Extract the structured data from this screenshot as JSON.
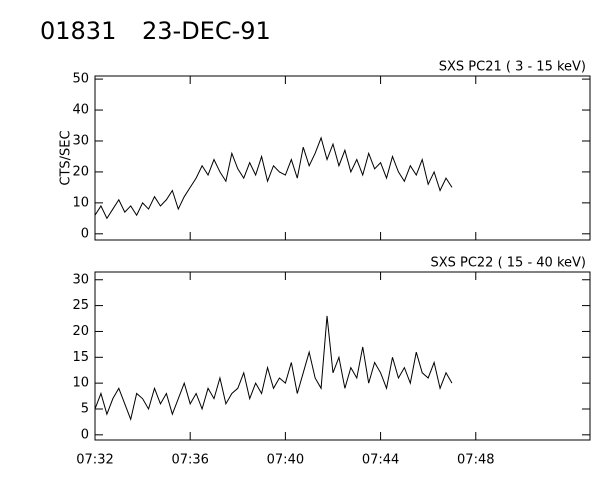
{
  "header": {
    "id": "01831",
    "date": "23-DEC-91"
  },
  "chart_data": [
    {
      "type": "line",
      "subtitle": "SXS PC21  (  3 - 15 keV)",
      "y_label": "CTS/SEC",
      "xlim": [
        452,
        472.8
      ],
      "xticks": [
        452,
        456,
        460,
        464,
        468
      ],
      "ylim": [
        -2,
        51
      ],
      "yticks": [
        0,
        10,
        20,
        30,
        40,
        50
      ],
      "x": [
        452,
        452.25,
        452.5,
        452.75,
        453,
        453.25,
        453.5,
        453.75,
        454,
        454.25,
        454.5,
        454.75,
        455,
        455.25,
        455.5,
        455.75,
        456,
        456.25,
        456.5,
        456.75,
        457,
        457.25,
        457.5,
        457.75,
        458,
        458.25,
        458.5,
        458.75,
        459,
        459.25,
        459.5,
        459.75,
        460,
        460.25,
        460.5,
        460.75,
        461,
        461.25,
        461.5,
        461.75,
        462,
        462.25,
        462.5,
        462.75,
        463,
        463.25,
        463.5,
        463.75,
        464,
        464.25,
        464.5,
        464.75,
        465,
        465.25,
        465.5,
        465.75,
        466,
        466.25,
        466.5,
        466.75,
        467
      ],
      "series": [
        {
          "color": "#000000",
          "values": [
            6,
            9,
            5,
            8,
            11,
            7,
            9,
            6,
            10,
            8,
            12,
            9,
            11,
            14,
            8,
            12,
            15,
            18,
            22,
            19,
            24,
            20,
            17,
            26,
            21,
            18,
            23,
            19,
            25,
            17,
            22,
            20,
            19,
            24,
            18,
            28,
            22,
            26,
            31,
            24,
            29,
            22,
            27,
            20,
            24,
            19,
            26,
            21,
            23,
            18,
            25,
            20,
            17,
            22,
            19,
            24,
            16,
            20,
            14,
            18,
            15
          ]
        }
      ]
    },
    {
      "type": "line",
      "subtitle": "SXS PC22  ( 15 - 40 keV)",
      "xlim": [
        452,
        472.8
      ],
      "xticks": [
        {
          "value": 452,
          "label": "07:32"
        },
        {
          "value": 456,
          "label": "07:36"
        },
        {
          "value": 460,
          "label": "07:40"
        },
        {
          "value": 464,
          "label": "07:44"
        },
        {
          "value": 468,
          "label": "07:48"
        }
      ],
      "ylim": [
        -1,
        31.5
      ],
      "yticks": [
        0,
        5,
        10,
        15,
        20,
        25,
        30
      ],
      "x": [
        452,
        452.25,
        452.5,
        452.75,
        453,
        453.25,
        453.5,
        453.75,
        454,
        454.25,
        454.5,
        454.75,
        455,
        455.25,
        455.5,
        455.75,
        456,
        456.25,
        456.5,
        456.75,
        457,
        457.25,
        457.5,
        457.75,
        458,
        458.25,
        458.5,
        458.75,
        459,
        459.25,
        459.5,
        459.75,
        460,
        460.25,
        460.5,
        460.75,
        461,
        461.25,
        461.5,
        461.75,
        462,
        462.25,
        462.5,
        462.75,
        463,
        463.25,
        463.5,
        463.75,
        464,
        464.25,
        464.5,
        464.75,
        465,
        465.25,
        465.5,
        465.75,
        466,
        466.25,
        466.5,
        466.75,
        467
      ],
      "series": [
        {
          "color": "#000000",
          "values": [
            5,
            8,
            4,
            7,
            9,
            6,
            3,
            8,
            7,
            5,
            9,
            6,
            8,
            4,
            7,
            10,
            6,
            8,
            5,
            9,
            7,
            11,
            6,
            8,
            9,
            12,
            7,
            10,
            8,
            13,
            9,
            11,
            10,
            14,
            8,
            12,
            16,
            11,
            9,
            23,
            12,
            15,
            9,
            13,
            11,
            17,
            10,
            14,
            12,
            9,
            15,
            11,
            13,
            10,
            16,
            12,
            11,
            14,
            9,
            12,
            10
          ]
        }
      ]
    }
  ]
}
